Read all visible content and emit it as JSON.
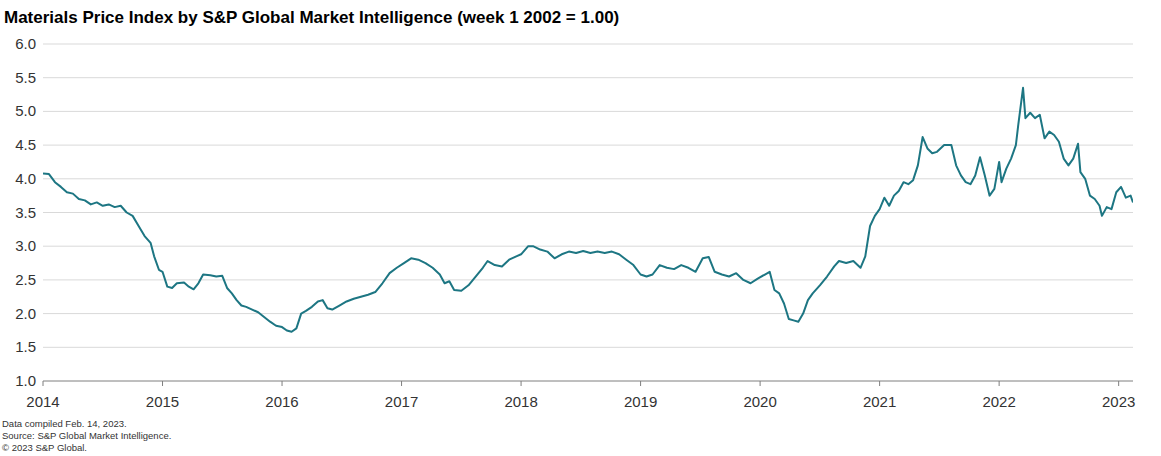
{
  "chart_data": {
    "type": "line",
    "title": "Materials Price Index by S&P Global Market Intelligence (week 1 2002 = 1.00)",
    "footer": [
      "Data compiled Feb. 14, 2023.",
      "Source: S&P Global Market Intelligence.",
      "© 2023 S&P Global."
    ],
    "color": "#1d7683",
    "grid": true,
    "xlim": [
      2014,
      2023.12
    ],
    "xticks": [
      2014,
      2015,
      2016,
      2017,
      2018,
      2019,
      2020,
      2021,
      2022,
      2023
    ],
    "ylim": [
      1,
      6
    ],
    "yticks": [
      {
        "value": 1,
        "label": "1.0"
      },
      {
        "value": 1.5,
        "label": "1.5"
      },
      {
        "value": 2,
        "label": "2.0"
      },
      {
        "value": 2.5,
        "label": "2.5"
      },
      {
        "value": 3,
        "label": "3.0"
      },
      {
        "value": 3.5,
        "label": "3.5"
      },
      {
        "value": 4,
        "label": "4.0"
      },
      {
        "value": 4.5,
        "label": "4.5"
      },
      {
        "value": 5,
        "label": "5.0"
      },
      {
        "value": 5.5,
        "label": "5.5"
      },
      {
        "value": 6,
        "label": "6.0"
      }
    ],
    "x": [
      2014.0,
      2014.05,
      2014.1,
      2014.15,
      2014.2,
      2014.25,
      2014.3,
      2014.35,
      2014.4,
      2014.45,
      2014.5,
      2014.55,
      2014.6,
      2014.65,
      2014.7,
      2014.75,
      2014.8,
      2014.85,
      2014.9,
      2014.93,
      2014.97,
      2015.0,
      2015.04,
      2015.08,
      2015.12,
      2015.18,
      2015.22,
      2015.26,
      2015.3,
      2015.34,
      2015.4,
      2015.45,
      2015.5,
      2015.54,
      2015.58,
      2015.62,
      2015.66,
      2015.7,
      2015.75,
      2015.8,
      2015.85,
      2015.9,
      2015.95,
      2016.0,
      2016.04,
      2016.08,
      2016.12,
      2016.16,
      2016.2,
      2016.25,
      2016.3,
      2016.34,
      2016.38,
      2016.42,
      2016.48,
      2016.54,
      2016.6,
      2016.66,
      2016.72,
      2016.78,
      2016.84,
      2016.9,
      2016.96,
      2017.02,
      2017.08,
      2017.14,
      2017.2,
      2017.26,
      2017.32,
      2017.36,
      2017.4,
      2017.44,
      2017.5,
      2017.56,
      2017.62,
      2017.68,
      2017.72,
      2017.78,
      2017.84,
      2017.9,
      2017.96,
      2018.0,
      2018.06,
      2018.1,
      2018.16,
      2018.22,
      2018.28,
      2018.34,
      2018.4,
      2018.46,
      2018.52,
      2018.58,
      2018.64,
      2018.7,
      2018.76,
      2018.82,
      2018.88,
      2018.94,
      2019.0,
      2019.05,
      2019.1,
      2019.16,
      2019.22,
      2019.28,
      2019.34,
      2019.4,
      2019.46,
      2019.52,
      2019.57,
      2019.62,
      2019.68,
      2019.74,
      2019.8,
      2019.86,
      2019.92,
      2019.98,
      2020.04,
      2020.08,
      2020.12,
      2020.16,
      2020.2,
      2020.24,
      2020.28,
      2020.32,
      2020.36,
      2020.4,
      2020.44,
      2020.5,
      2020.56,
      2020.62,
      2020.66,
      2020.72,
      2020.78,
      2020.84,
      2020.88,
      2020.92,
      2020.96,
      2021.0,
      2021.04,
      2021.08,
      2021.12,
      2021.16,
      2021.2,
      2021.24,
      2021.28,
      2021.32,
      2021.36,
      2021.4,
      2021.44,
      2021.48,
      2021.54,
      2021.6,
      2021.64,
      2021.68,
      2021.72,
      2021.76,
      2021.8,
      2021.84,
      2021.88,
      2021.92,
      2021.96,
      2022.0,
      2022.02,
      2022.06,
      2022.1,
      2022.14,
      2022.16,
      2022.2,
      2022.22,
      2022.26,
      2022.3,
      2022.34,
      2022.38,
      2022.42,
      2022.46,
      2022.5,
      2022.54,
      2022.58,
      2022.62,
      2022.66,
      2022.68,
      2022.72,
      2022.76,
      2022.8,
      2022.84,
      2022.86,
      2022.9,
      2022.94,
      2022.98,
      2023.02,
      2023.06,
      2023.1,
      2023.12
    ],
    "values": [
      4.08,
      4.07,
      3.95,
      3.88,
      3.8,
      3.78,
      3.7,
      3.68,
      3.62,
      3.65,
      3.6,
      3.62,
      3.58,
      3.6,
      3.5,
      3.45,
      3.3,
      3.15,
      3.05,
      2.85,
      2.65,
      2.62,
      2.4,
      2.38,
      2.45,
      2.46,
      2.4,
      2.36,
      2.45,
      2.58,
      2.57,
      2.55,
      2.56,
      2.38,
      2.3,
      2.2,
      2.12,
      2.1,
      2.06,
      2.02,
      1.95,
      1.88,
      1.82,
      1.8,
      1.75,
      1.73,
      1.78,
      2.0,
      2.04,
      2.1,
      2.18,
      2.2,
      2.08,
      2.06,
      2.12,
      2.18,
      2.22,
      2.25,
      2.28,
      2.32,
      2.45,
      2.6,
      2.68,
      2.75,
      2.82,
      2.8,
      2.75,
      2.68,
      2.58,
      2.45,
      2.48,
      2.35,
      2.34,
      2.42,
      2.55,
      2.68,
      2.78,
      2.72,
      2.7,
      2.8,
      2.85,
      2.88,
      3.0,
      3.0,
      2.95,
      2.92,
      2.82,
      2.88,
      2.92,
      2.9,
      2.93,
      2.9,
      2.92,
      2.9,
      2.92,
      2.88,
      2.8,
      2.72,
      2.58,
      2.55,
      2.58,
      2.72,
      2.68,
      2.66,
      2.72,
      2.68,
      2.62,
      2.82,
      2.84,
      2.62,
      2.58,
      2.55,
      2.6,
      2.5,
      2.45,
      2.52,
      2.58,
      2.62,
      2.35,
      2.3,
      2.15,
      1.92,
      1.9,
      1.88,
      2.0,
      2.2,
      2.3,
      2.42,
      2.55,
      2.7,
      2.78,
      2.75,
      2.78,
      2.68,
      2.85,
      3.3,
      3.45,
      3.55,
      3.72,
      3.6,
      3.75,
      3.82,
      3.95,
      3.92,
      3.98,
      4.2,
      4.62,
      4.45,
      4.38,
      4.4,
      4.5,
      4.5,
      4.2,
      4.05,
      3.95,
      3.92,
      4.05,
      4.32,
      4.05,
      3.75,
      3.85,
      4.25,
      3.95,
      4.15,
      4.3,
      4.5,
      4.8,
      5.35,
      4.9,
      4.98,
      4.9,
      4.95,
      4.6,
      4.7,
      4.65,
      4.55,
      4.3,
      4.2,
      4.3,
      4.52,
      4.1,
      4.0,
      3.75,
      3.7,
      3.6,
      3.45,
      3.58,
      3.55,
      3.8,
      3.88,
      3.72,
      3.75,
      3.65
    ]
  }
}
